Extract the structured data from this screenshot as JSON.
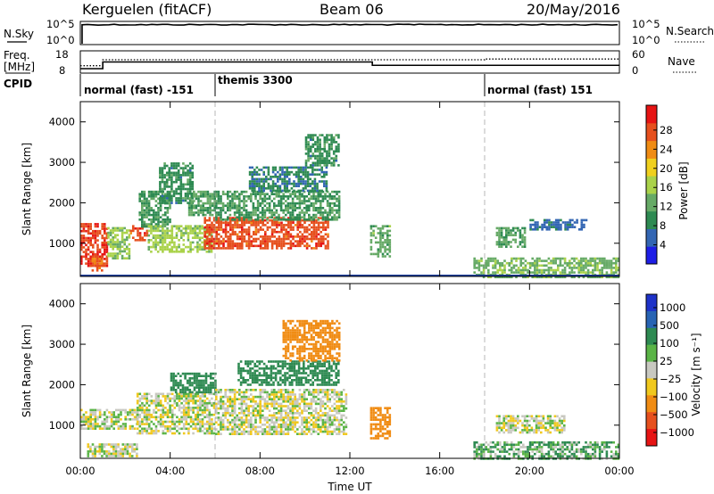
{
  "header": {
    "title": "Kerguelen (fitACF)",
    "beam": "Beam 06",
    "date": "20/May/2016"
  },
  "top_panels": {
    "nsky_label": "N.Sky",
    "nsearch_label": "N.Search",
    "nsky_ticks": [
      "10^5",
      "10^0"
    ],
    "nsearch_ticks": [
      "10^5",
      "10^0"
    ],
    "freq_label_line1": "Freq.",
    "freq_label_line2": "[MHz]",
    "freq_ticks": [
      "18",
      "8"
    ],
    "nave_label": "Nave",
    "nave_ticks": [
      "60",
      "0"
    ],
    "cpid_label": "CPID",
    "cpid_segments": [
      {
        "label": "normal (fast) -151",
        "start": 0,
        "end": 6
      },
      {
        "label": "themis 3300",
        "start": 6,
        "end": 18
      },
      {
        "label": "normal (fast) 151",
        "start": 18,
        "end": 24
      }
    ]
  },
  "chart_data": [
    {
      "type": "heatmap",
      "panel": "power",
      "ylabel": "Slant Range [km]",
      "xlabel": "Time UT",
      "x_range_hours": [
        0,
        24
      ],
      "ylim": [
        180,
        4500
      ],
      "y_ticks": [
        "1000",
        "2000",
        "3000",
        "4000"
      ],
      "x_ticks": [
        "00:00",
        "04:00",
        "08:00",
        "12:00",
        "16:00",
        "20:00",
        "00:00"
      ],
      "colorbar": {
        "label": "Power [dB]",
        "ticks": [
          "4",
          "8",
          "12",
          "16",
          "20",
          "24",
          "28"
        ],
        "colors": [
          "#1e1ee6",
          "#3366b3",
          "#2e8a52",
          "#66aa66",
          "#aad24a",
          "#f0d01e",
          "#f08c14",
          "#e6501e",
          "#e61414"
        ]
      },
      "regions": [
        {
          "t0": 0.0,
          "t1": 1.2,
          "r0": 450,
          "r1": 1500,
          "level": 27
        },
        {
          "t0": 0.5,
          "t1": 1.0,
          "r0": 300,
          "r1": 700,
          "level": 25
        },
        {
          "t0": 1.2,
          "t1": 2.2,
          "r0": 600,
          "r1": 1400,
          "level": 14
        },
        {
          "t0": 2.2,
          "t1": 3.0,
          "r0": 1050,
          "r1": 1450,
          "level": 26
        },
        {
          "t0": 2.6,
          "t1": 4.0,
          "r0": 1400,
          "r1": 2300,
          "level": 10
        },
        {
          "t0": 3.0,
          "t1": 5.8,
          "r0": 800,
          "r1": 1450,
          "level": 15
        },
        {
          "t0": 3.5,
          "t1": 5.0,
          "r0": 2000,
          "r1": 3000,
          "level": 9
        },
        {
          "t0": 4.8,
          "t1": 6.0,
          "r0": 1700,
          "r1": 2300,
          "level": 11
        },
        {
          "t0": 5.5,
          "t1": 11.0,
          "r0": 850,
          "r1": 1650,
          "level": 26
        },
        {
          "t0": 6.0,
          "t1": 11.5,
          "r0": 1600,
          "r1": 2300,
          "level": 10
        },
        {
          "t0": 7.5,
          "t1": 11.0,
          "r0": 2300,
          "r1": 2900,
          "level": 8
        },
        {
          "t0": 10.0,
          "t1": 11.5,
          "r0": 2900,
          "r1": 3700,
          "level": 9
        },
        {
          "t0": 12.9,
          "t1": 13.8,
          "r0": 700,
          "r1": 1450,
          "level": 12
        },
        {
          "t0": 18.5,
          "t1": 19.8,
          "r0": 900,
          "r1": 1400,
          "level": 11
        },
        {
          "t0": 20.0,
          "t1": 22.5,
          "r0": 1350,
          "r1": 1600,
          "level": 6
        },
        {
          "t0": 17.5,
          "t1": 24.0,
          "r0": 180,
          "r1": 650,
          "level": 13
        }
      ]
    },
    {
      "type": "heatmap",
      "panel": "velocity",
      "ylabel": "Slant Range [km]",
      "xlabel": "Time UT",
      "x_range_hours": [
        0,
        24
      ],
      "ylim": [
        180,
        4500
      ],
      "y_ticks": [
        "1000",
        "2000",
        "3000",
        "4000"
      ],
      "x_ticks": [
        "00:00",
        "04:00",
        "08:00",
        "12:00",
        "16:00",
        "20:00",
        "00:00"
      ],
      "colorbar": {
        "label": "Velocity [m s⁻¹]",
        "ticks": [
          "1000",
          "500",
          "100",
          "25",
          "−25",
          "−100",
          "−500",
          "−1000"
        ],
        "colors": [
          "#1e32c8",
          "#2864b4",
          "#2e8a52",
          "#5ab446",
          "#c8c8c0",
          "#f0c81e",
          "#f08c14",
          "#e6501e",
          "#e61414"
        ]
      },
      "regions": [
        {
          "t0": 0.0,
          "t1": 2.5,
          "r0": 900,
          "r1": 1400,
          "level": 0
        },
        {
          "t0": 0.3,
          "t1": 2.5,
          "r0": 250,
          "r1": 550,
          "level": 0
        },
        {
          "t0": 2.5,
          "t1": 6.0,
          "r0": 800,
          "r1": 1800,
          "level": 0
        },
        {
          "t0": 4.0,
          "t1": 6.0,
          "r0": 1800,
          "r1": 2300,
          "level": 120
        },
        {
          "t0": 6.0,
          "t1": 11.8,
          "r0": 800,
          "r1": 1900,
          "level": 0
        },
        {
          "t0": 7.0,
          "t1": 11.5,
          "r0": 2000,
          "r1": 2600,
          "level": 150
        },
        {
          "t0": 9.0,
          "t1": 11.5,
          "r0": 2600,
          "r1": 3600,
          "level": -200
        },
        {
          "t0": 12.9,
          "t1": 13.8,
          "r0": 700,
          "r1": 1450,
          "level": -150
        },
        {
          "t0": 18.5,
          "t1": 21.5,
          "r0": 800,
          "r1": 1250,
          "level": 0
        },
        {
          "t0": 17.5,
          "t1": 24.0,
          "r0": 180,
          "r1": 600,
          "level": 60
        }
      ]
    }
  ],
  "series_top": {
    "nsky_level": 0.86,
    "freq_mhz": [
      {
        "t0": 0.0,
        "t1": 1.0,
        "mhz": 10.0
      },
      {
        "t0": 1.0,
        "t1": 13.0,
        "mhz": 13.0
      },
      {
        "t0": 13.0,
        "t1": 24.0,
        "mhz": 11.5
      }
    ],
    "nave": [
      {
        "t0": 0.0,
        "t1": 1.0,
        "v": 20
      },
      {
        "t0": 1.0,
        "t1": 18.0,
        "v": 36
      },
      {
        "t0": 18.0,
        "t1": 24.0,
        "v": 38
      }
    ]
  }
}
